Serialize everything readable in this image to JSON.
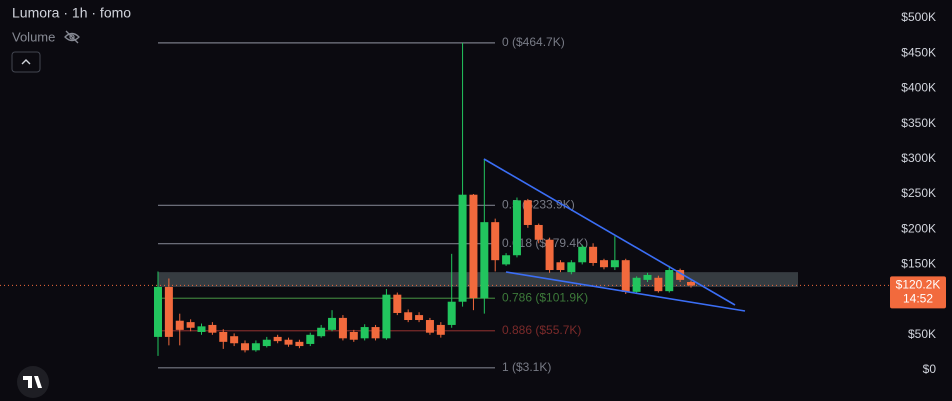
{
  "chart_data": {
    "type": "candlestick",
    "title": "Lumora · 1h · fomo",
    "volume_label": "Volume",
    "up_color": "#22c55e",
    "down_color": "#f26a3d",
    "ylim": [
      0,
      500000
    ],
    "yticks": [
      {
        "value": 0,
        "label": "$0"
      },
      {
        "value": 50000,
        "label": "$50K"
      },
      {
        "value": 100000,
        "label": "$100K"
      },
      {
        "value": 150000,
        "label": "$150K"
      },
      {
        "value": 200000,
        "label": "$200K"
      },
      {
        "value": 250000,
        "label": "$250K"
      },
      {
        "value": 300000,
        "label": "$300K"
      },
      {
        "value": 350000,
        "label": "$350K"
      },
      {
        "value": 400000,
        "label": "$400K"
      },
      {
        "value": 450000,
        "label": "$450K"
      },
      {
        "value": 500000,
        "label": "$500K"
      }
    ],
    "series": [
      {
        "open": [
          47000,
          118000,
          70000,
          68000,
          54000,
          64000,
          54000,
          48000,
          38000,
          28000,
          34000,
          47000,
          43000,
          40000,
          37000,
          48000,
          57000,
          74000,
          54000,
          45000,
          61000,
          45000,
          107000,
          82000,
          78000,
          71000,
          64000,
          64000,
          97000,
          249000,
          102000,
          210000,
          150000,
          163000,
          241000,
          206000,
          185000,
          153000,
          139000,
          153000,
          175000,
          156000,
          146000,
          156000,
          111000,
          128000,
          131000,
          112000,
          142000,
          125000
        ],
        "high": [
          140000,
          130000,
          80000,
          72000,
          66000,
          68000,
          58000,
          52000,
          42000,
          42000,
          47000,
          50000,
          46000,
          43000,
          53000,
          64000,
          85000,
          78000,
          57000,
          65000,
          64000,
          115000,
          110000,
          86000,
          82000,
          74000,
          68000,
          165000,
          464700,
          250000,
          300000,
          215000,
          166000,
          245000,
          243000,
          208000,
          188000,
          156000,
          156000,
          178000,
          180000,
          158000,
          190000,
          158000,
          133000,
          138000,
          134000,
          148000,
          144000,
          127000
        ],
        "low": [
          20000,
          35000,
          35000,
          55000,
          50000,
          50000,
          30000,
          34000,
          25000,
          26000,
          32000,
          38000,
          33000,
          31000,
          34000,
          46000,
          55000,
          42000,
          40000,
          42000,
          42000,
          43000,
          78000,
          68000,
          68000,
          50000,
          46000,
          60000,
          90000,
          85000,
          80000,
          140000,
          148000,
          160000,
          202000,
          180000,
          138000,
          139000,
          136000,
          150000,
          148000,
          143000,
          142000,
          108000,
          108000,
          125000,
          110000,
          110000,
          125000,
          117000
        ],
        "close": [
          118000,
          47000,
          57000,
          60000,
          62000,
          53000,
          40000,
          38000,
          28000,
          38000,
          43000,
          41000,
          36000,
          34000,
          50000,
          60000,
          74000,
          45000,
          43000,
          61000,
          45000,
          107000,
          81000,
          71000,
          71000,
          53000,
          50000,
          97000,
          249000,
          102000,
          210000,
          156000,
          163000,
          241000,
          206000,
          185000,
          142000,
          142000,
          153000,
          175000,
          152000,
          146000,
          156000,
          111000,
          131000,
          135000,
          112000,
          142000,
          128000,
          120000
        ]
      }
    ],
    "fib_levels": [
      {
        "value": 464700,
        "label": "0 ($464.7K)",
        "color": "#787b86"
      },
      {
        "value": 233900,
        "label": "0.5 ($233.9K)",
        "color": "#787b86"
      },
      {
        "value": 179400,
        "label": "0.618 ($179.4K)",
        "color": "#787b86"
      },
      {
        "value": 101900,
        "label": "0.786 ($101.9K)",
        "color": "#3d7a3a"
      },
      {
        "value": 55700,
        "label": "0.886 ($55.7K)",
        "color": "#7a2a2a"
      },
      {
        "value": 3100,
        "label": "1 ($3.1K)",
        "color": "#787b86"
      }
    ],
    "zone": [
      118000,
      139000
    ],
    "last_price": {
      "value": 120200,
      "label": "$120.2K"
    },
    "countdown": "14:52"
  }
}
